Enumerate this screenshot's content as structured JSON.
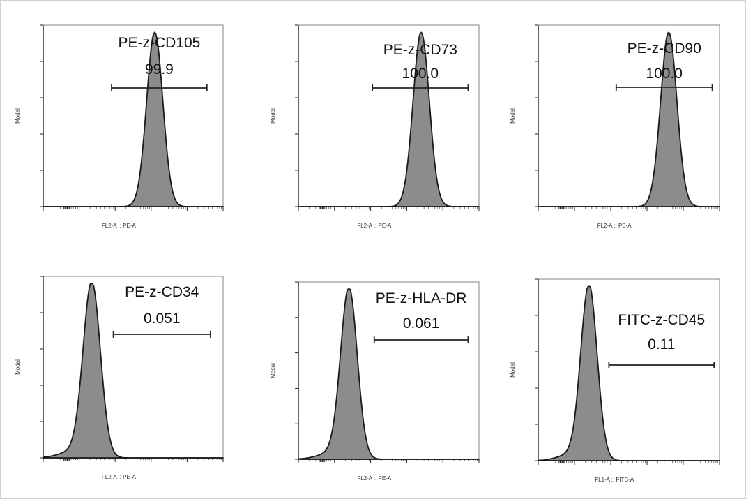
{
  "chart_data": [
    {
      "type": "histogram",
      "marker": "PE-z-CD105",
      "gate_value": "99.9",
      "xlabel": "FL2-A :: PE-A",
      "ylabel": "Modal",
      "peak_position": 0.62,
      "peak_width": 0.045,
      "gate_range": [
        0.38,
        0.91
      ],
      "ref_overlay": true
    },
    {
      "type": "histogram",
      "marker": "PE-z-CD73",
      "gate_value": "100.0",
      "xlabel": "FL2-A :: PE-A",
      "ylabel": "Modal",
      "peak_position": 0.68,
      "peak_width": 0.045,
      "gate_range": [
        0.41,
        0.94
      ],
      "ref_overlay": true
    },
    {
      "type": "histogram",
      "marker": "PE-z-CD90",
      "gate_value": "100.0",
      "xlabel": "FL2-A :: PE-A",
      "ylabel": "Modal",
      "peak_position": 0.72,
      "peak_width": 0.045,
      "gate_range": [
        0.43,
        0.96
      ],
      "ref_overlay": true
    },
    {
      "type": "histogram",
      "marker": "PE-z-CD34",
      "gate_value": "0.051",
      "xlabel": "FL2-A :: PE-A",
      "ylabel": "Modal",
      "peak_position": 0.27,
      "peak_width": 0.048,
      "gate_range": [
        0.39,
        0.93
      ],
      "ref_overlay": false
    },
    {
      "type": "histogram",
      "marker": "PE-z-HLA-DR",
      "gate_value": "0.061",
      "xlabel": "FL2-A :: PE-A",
      "ylabel": "Modal",
      "peak_position": 0.28,
      "peak_width": 0.046,
      "gate_range": [
        0.42,
        0.94
      ],
      "ref_overlay": false
    },
    {
      "type": "histogram",
      "marker": "FITC-z-CD45",
      "gate_value": "0.11",
      "xlabel": "FL1-A :: FITC-A",
      "ylabel": "Modal",
      "peak_position": 0.28,
      "peak_width": 0.045,
      "gate_range": [
        0.39,
        0.97
      ],
      "ref_overlay": false
    }
  ],
  "colors": {
    "fill": "#8c8c8c",
    "outline": "#1a1a1a",
    "reference": "#e6e6e6",
    "frame": "#d0d0d0"
  }
}
